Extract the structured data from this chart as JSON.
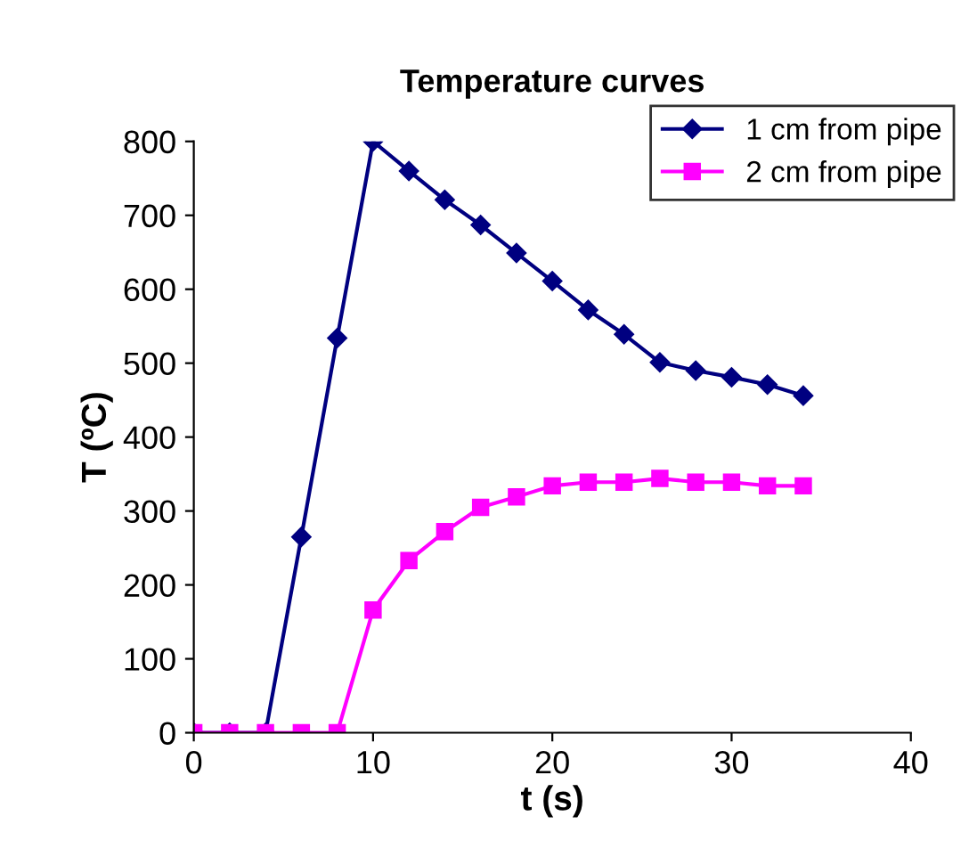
{
  "chart_data": {
    "type": "line",
    "title": "Temperature curves",
    "xlabel": "t (s)",
    "ylabel": "T (ºC)",
    "xlim": [
      0,
      40
    ],
    "xticks": [
      0,
      10,
      20,
      30,
      40
    ],
    "ylim": [
      0,
      800
    ],
    "yticks": [
      0,
      100,
      200,
      300,
      400,
      500,
      600,
      700,
      800
    ],
    "x": [
      0,
      2,
      4,
      6,
      8,
      10,
      12,
      14,
      16,
      18,
      20,
      22,
      24,
      26,
      28,
      30,
      32,
      34
    ],
    "series": [
      {
        "name": "1 cm from pipe",
        "color": "#000080",
        "marker": "diamond",
        "values": [
          0,
          0,
          0,
          265,
          534,
          800,
          760,
          721,
          687,
          649,
          611,
          572,
          539,
          501,
          490,
          481,
          471,
          456
        ]
      },
      {
        "name": "2 cm from pipe",
        "color": "#ff00ff",
        "marker": "square",
        "values": [
          0,
          0,
          0,
          0,
          0,
          166,
          233,
          272,
          305,
          319,
          334,
          339,
          339,
          344,
          339,
          339,
          334,
          334
        ]
      }
    ],
    "grid": false,
    "legend": "top right",
    "line_style": "solid"
  }
}
